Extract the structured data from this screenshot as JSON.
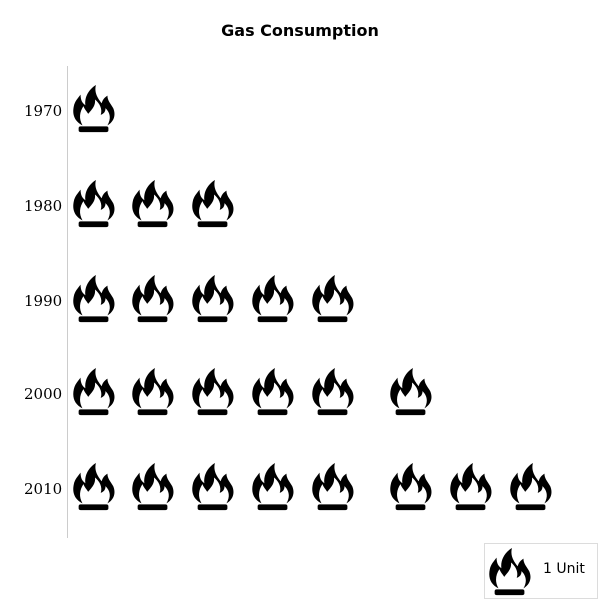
{
  "chart_data": {
    "type": "pictograph",
    "title": "Gas Consumption",
    "categories": [
      "1970",
      "1980",
      "1990",
      "2000",
      "2010"
    ],
    "values": [
      1,
      3,
      5,
      6,
      8
    ],
    "icon": "flame-icon",
    "unit_label": "1 Unit",
    "icon_color": "#000000",
    "axis_color": "#cccccc"
  }
}
